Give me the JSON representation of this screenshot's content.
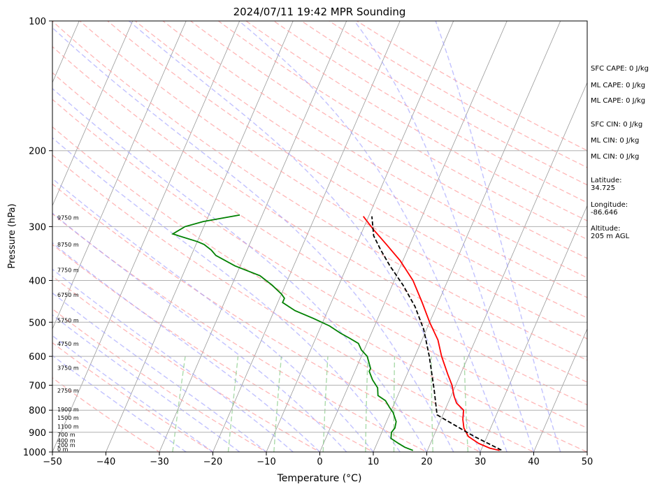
{
  "chart_data": {
    "type": "line",
    "title": "2024/07/11 19:42 MPR Sounding",
    "xlabel": "Temperature (°C)",
    "ylabel": "Pressure (hPa)",
    "xlim": [
      -50,
      50
    ],
    "ylim": [
      1000,
      100
    ],
    "y_scale": "log",
    "grid": true,
    "x_ticks": [
      -50,
      -40,
      -30,
      -20,
      -10,
      0,
      10,
      20,
      30,
      40,
      50
    ],
    "y_ticks": [
      100,
      200,
      300,
      400,
      500,
      600,
      700,
      800,
      900,
      1000
    ],
    "skew_t": true,
    "series": [
      {
        "color": "#ff0000",
        "style": "solid",
        "x": [
          33.5,
          31.5,
          29,
          26.5,
          25,
          24.1,
          23.5,
          21.6,
          20.5,
          19.3,
          17.6,
          15.0,
          13.0,
          10.0,
          7.0,
          3.5,
          -0.5,
          -4.4,
          -8.0,
          -11.0
        ],
        "y": [
          992,
          980,
          955,
          920,
          880,
          840,
          800,
          770,
          740,
          700,
          660,
          600,
          550,
          500,
          450,
          400,
          360,
          330,
          305,
          284
        ]
      },
      {
        "color": "#008000",
        "style": "solid",
        "x": [
          17.3,
          15.5,
          14,
          12.2,
          11.8,
          12.1,
          11.8,
          10.5,
          9.5,
          8.1,
          6.3,
          5.6,
          4.0,
          2.7,
          2.7,
          1.1,
          -0.5,
          -1.6,
          -3.6,
          -5.8,
          -8.4,
          -12,
          -16.1,
          -19.1,
          -19.1,
          -20.0,
          -22.5,
          -25.5,
          -31,
          -35.4,
          -36.7,
          -38.5,
          -40,
          -45.2,
          -43.5,
          -40.5,
          -34.2
        ],
        "y": [
          992,
          975,
          955,
          930,
          900,
          880,
          850,
          810,
          790,
          760,
          740,
          710,
          680,
          650,
          640,
          600,
          580,
          560,
          545,
          530,
          510,
          490,
          470,
          450,
          440,
          430,
          410,
          390,
          370,
          350,
          340,
          330,
          325,
          312,
          300,
          292,
          282
        ]
      },
      {
        "color": "#000000",
        "style": "dashed",
        "x": [
          33.8,
          27.6,
          20.7,
          18.9,
          16.4,
          12.7,
          9.5,
          6.0,
          2.0,
          -2.0,
          -5.0,
          -7.5,
          -9.4
        ],
        "y": [
          990,
          920,
          840,
          820,
          720,
          600,
          520,
          460,
          410,
          370,
          340,
          315,
          284
        ]
      }
    ],
    "annotations": {
      "height_labels": [
        {
          "label": "0 m",
          "p": 1000
        },
        {
          "label": "200 m",
          "p": 977
        },
        {
          "label": "400 m",
          "p": 955
        },
        {
          "label": "700 m",
          "p": 925
        },
        {
          "label": "1100 m",
          "p": 885
        },
        {
          "label": "1500 m",
          "p": 845
        },
        {
          "label": "1900 m",
          "p": 808
        },
        {
          "label": "2750 m",
          "p": 731
        },
        {
          "label": "3750 m",
          "p": 647
        },
        {
          "label": "4750 m",
          "p": 569
        },
        {
          "label": "5750 m",
          "p": 502
        },
        {
          "label": "6750 m",
          "p": 438
        },
        {
          "label": "7750 m",
          "p": 384
        },
        {
          "label": "8750 m",
          "p": 335
        },
        {
          "label": "9750 m",
          "p": 290
        }
      ]
    },
    "reference_lines": {
      "dry_adiabat_color": "#ff9999",
      "moist_adiabat_color": "#9999ff",
      "mixing_ratio_color": "#88cc88",
      "isotherm_color": "#999999"
    }
  },
  "info_panel": {
    "sfc_cape": "SFC CAPE: 0 J/kg",
    "ml_cape_1": "ML CAPE: 0 J/kg",
    "ml_cape_2": "ML CAPE: 0 J/kg",
    "sfc_cin": "SFC CIN: 0 J/kg",
    "ml_cin_1": "ML CIN: 0 J/kg",
    "ml_cin_2": "ML CIN: 0 J/kg",
    "latitude": "Latitude:\n34.725",
    "longitude": "Longitude:\n-86.646",
    "altitude": "Altitude:\n205 m AGL"
  }
}
